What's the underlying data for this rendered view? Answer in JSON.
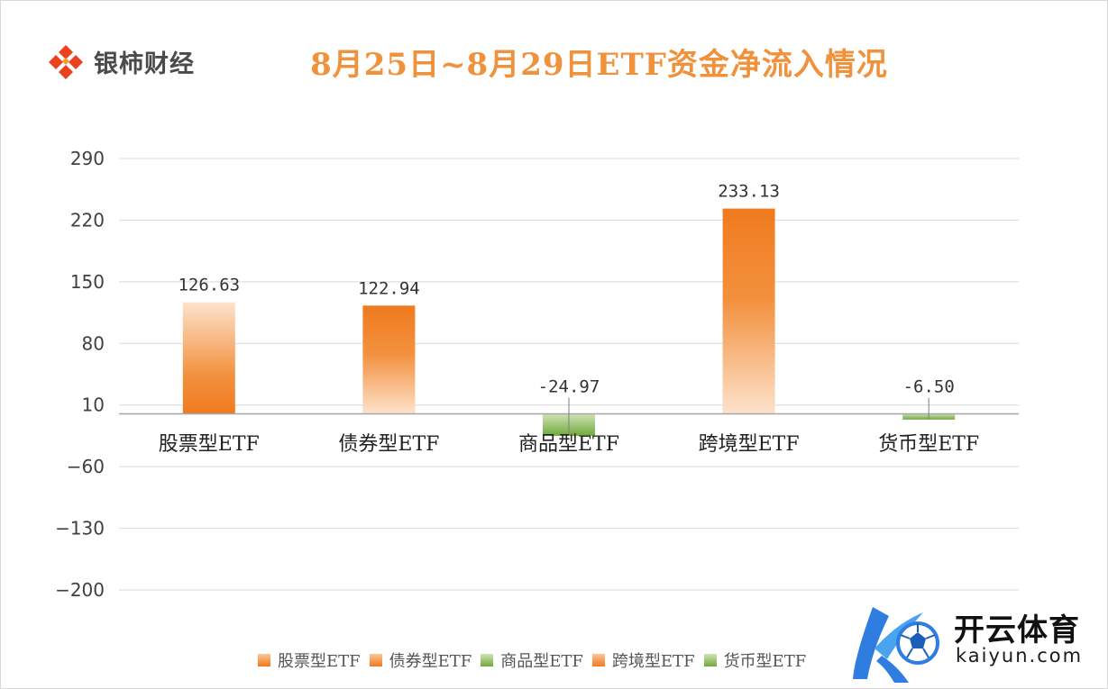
{
  "brand": {
    "name": "银柿财经",
    "logo_icon": "diamond-logo-icon",
    "accent": "#e8431e"
  },
  "watermark": {
    "name_cn": "开云体育",
    "name_en": "kaiyun.com",
    "icon": "k-football-logo-icon"
  },
  "colors": {
    "orange": "#f07a1e",
    "orange_light": "#fde2cc",
    "green": "#70a83c",
    "green_light": "#cfe3b4",
    "grid": "#d9d9d9",
    "axis": "#bfbfbf"
  },
  "chart_data": {
    "type": "bar",
    "title": "8月25日~8月29日ETF资金净流入情况",
    "categories": [
      "股票型ETF",
      "债券型ETF",
      "商品型ETF",
      "跨境型ETF",
      "货币型ETF"
    ],
    "values": [
      126.63,
      122.94,
      -24.97,
      233.13,
      -6.5
    ],
    "data_labels": [
      "126.63",
      "122.94",
      "-24.97",
      "233.13",
      "-6.50"
    ],
    "bar_colors": [
      "orange",
      "orange",
      "green",
      "orange",
      "green"
    ],
    "gradient_direction": [
      "light-top",
      "light-bottom",
      "light-bottom",
      "light-bottom",
      "light-bottom"
    ],
    "ylim": [
      -200,
      290
    ],
    "yticks": [
      290,
      220,
      150,
      80,
      10,
      -60,
      -130,
      -200
    ],
    "ytick_labels": [
      "290",
      "220",
      "150",
      "80",
      "10",
      "−60",
      "−130",
      "−200"
    ],
    "grid": true,
    "legend": {
      "position": "bottom",
      "entries": [
        "股票型ETF",
        "债券型ETF",
        "商品型ETF",
        "跨境型ETF",
        "货币型ETF"
      ]
    }
  }
}
